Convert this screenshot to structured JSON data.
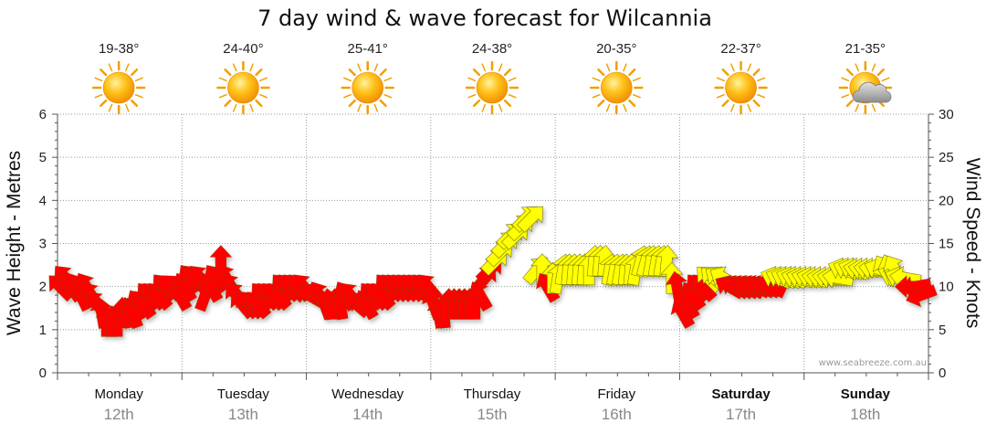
{
  "chart_data": {
    "type": "forecast",
    "title": "7 day wind & wave forecast for Wilcannia",
    "y_left": {
      "label": "Wave Height - Metres",
      "range": [
        0,
        6
      ],
      "ticks": [
        "0",
        "1",
        "2",
        "3",
        "4",
        "5",
        "6"
      ]
    },
    "y_right": {
      "label": "Wind Speed - Knots",
      "range": [
        0,
        30
      ],
      "ticks": [
        "0",
        "5",
        "10",
        "15",
        "20",
        "25",
        "30"
      ]
    },
    "days": [
      {
        "name": "Monday",
        "date": "12th",
        "temp": "19-38°",
        "icon": "sun-icon",
        "bold": false
      },
      {
        "name": "Tuesday",
        "date": "13th",
        "temp": "24-40°",
        "icon": "sun-icon",
        "bold": false
      },
      {
        "name": "Wednesday",
        "date": "14th",
        "temp": "25-41°",
        "icon": "sun-icon",
        "bold": false
      },
      {
        "name": "Thursday",
        "date": "15th",
        "temp": "24-38°",
        "icon": "sun-icon",
        "bold": false
      },
      {
        "name": "Friday",
        "date": "16th",
        "temp": "20-35°",
        "icon": "sun-icon",
        "bold": false
      },
      {
        "name": "Saturday",
        "date": "17th",
        "temp": "22-37°",
        "icon": "sun-icon",
        "bold": true
      },
      {
        "name": "Sunday",
        "date": "18th",
        "temp": "21-35°",
        "icon": "partly-cloudy-icon",
        "bold": true
      }
    ],
    "wind_series": {
      "name": "Wind speed (knots) and direction, hourly",
      "start_hour": 0,
      "speed_knots": [
        10,
        11,
        10,
        10,
        9,
        10,
        9,
        8,
        7,
        6,
        6,
        6,
        7,
        7,
        7,
        8,
        8,
        9,
        9,
        9,
        10,
        10,
        10,
        9,
        10,
        11,
        11,
        11,
        9,
        10,
        11,
        13,
        11,
        10,
        9,
        8,
        8,
        8,
        8,
        9,
        9,
        9,
        9,
        10,
        10,
        10,
        10,
        10,
        9,
        9,
        9,
        8,
        8,
        8,
        8,
        9,
        9,
        8,
        8,
        8,
        9,
        9,
        9,
        10,
        10,
        10,
        10,
        10,
        10,
        10,
        10,
        10,
        8,
        7,
        7,
        8,
        8,
        8,
        8,
        8,
        8,
        9,
        11,
        12,
        13,
        14,
        15,
        16,
        16,
        17,
        18,
        18,
        12,
        12,
        10,
        11,
        11,
        12,
        12,
        12,
        12,
        12,
        12,
        13,
        13,
        13,
        12,
        12,
        12,
        12,
        12,
        12,
        13,
        13,
        13,
        13,
        13,
        13,
        11,
        10,
        7,
        8,
        9,
        10,
        10,
        11,
        11,
        11,
        11,
        10,
        10,
        10,
        10,
        10,
        10,
        10,
        10,
        10,
        11,
        11,
        11,
        11,
        11,
        11,
        11,
        11,
        11,
        11,
        11,
        11,
        11,
        12,
        12,
        12,
        12,
        12,
        12,
        12,
        12,
        12,
        12,
        12,
        11,
        11,
        10,
        10,
        9
      ],
      "direction_deg": [
        135,
        140,
        145,
        150,
        155,
        150,
        145,
        140,
        170,
        180,
        180,
        180,
        180,
        170,
        160,
        150,
        145,
        140,
        140,
        140,
        140,
        135,
        135,
        150,
        150,
        145,
        140,
        140,
        200,
        150,
        145,
        180,
        150,
        145,
        140,
        140,
        140,
        140,
        140,
        140,
        140,
        140,
        140,
        140,
        140,
        140,
        140,
        140,
        120,
        130,
        150,
        160,
        170,
        180,
        170,
        150,
        140,
        130,
        120,
        150,
        140,
        140,
        140,
        140,
        140,
        140,
        140,
        140,
        140,
        140,
        140,
        140,
        160,
        170,
        175,
        180,
        180,
        180,
        180,
        180,
        180,
        150,
        220,
        225,
        225,
        225,
        225,
        225,
        225,
        225,
        225,
        225,
        220,
        180,
        150,
        180,
        190,
        190,
        185,
        185,
        185,
        185,
        180,
        185,
        185,
        185,
        190,
        190,
        190,
        185,
        185,
        190,
        195,
        195,
        190,
        190,
        190,
        185,
        180,
        170,
        150,
        150,
        145,
        140,
        140,
        135,
        130,
        125,
        120,
        120,
        120,
        120,
        120,
        120,
        115,
        115,
        115,
        115,
        110,
        110,
        110,
        110,
        105,
        105,
        105,
        105,
        100,
        100,
        100,
        100,
        100,
        110,
        110,
        110,
        100,
        100,
        100,
        100,
        110,
        150,
        160,
        150,
        110,
        100,
        90,
        80,
        70
      ]
    },
    "legend_colors": {
      "light_wind": "#ff0000",
      "moderate_wind": "#ffff00"
    },
    "credit": "www.seabreeze.com.au"
  }
}
